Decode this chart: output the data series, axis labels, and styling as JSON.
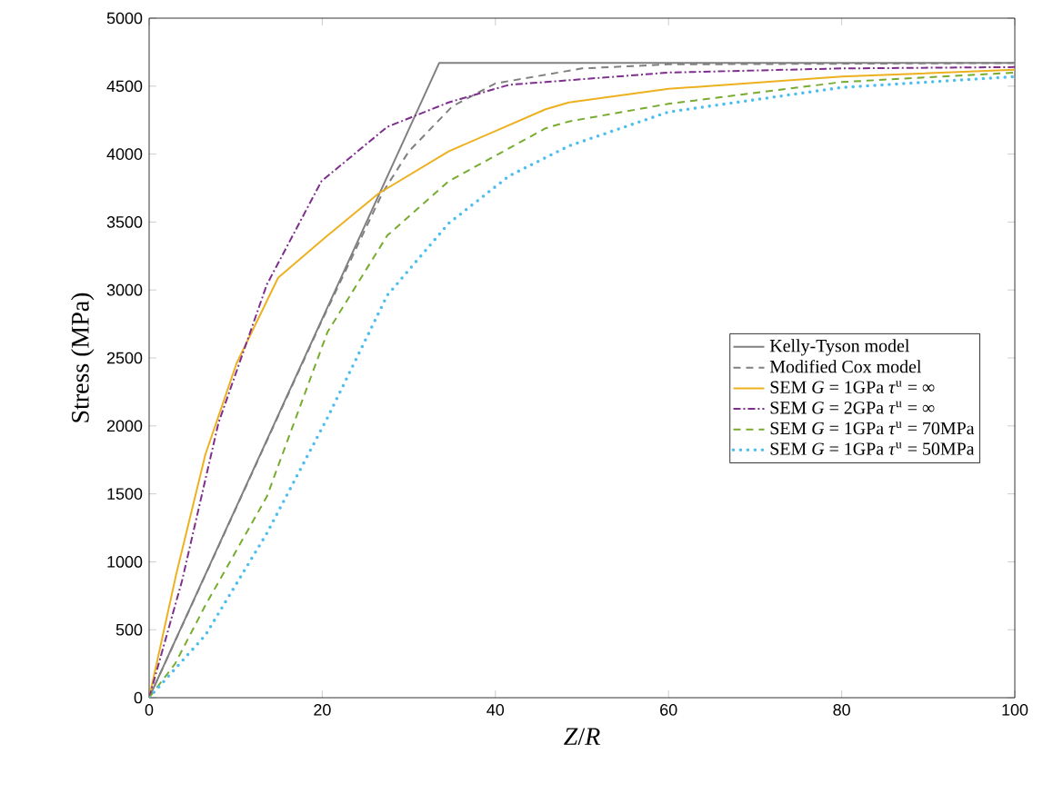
{
  "chart_data": {
    "type": "line",
    "xlabel": "*Z*/*R*",
    "ylabel": "Stress (MPa)",
    "xlim": [
      0,
      100
    ],
    "ylim": [
      0,
      5000
    ],
    "xticks": [
      0,
      20,
      40,
      60,
      80,
      100
    ],
    "yticks": [
      0,
      500,
      1000,
      1500,
      2000,
      2500,
      3000,
      3500,
      4000,
      4500,
      5000
    ],
    "grid": false,
    "legend": "right",
    "series": [
      {
        "name": "Kelly-Tyson model",
        "color": "#808080",
        "line_style": "solid",
        "x": [
          0,
          33.5,
          100
        ],
        "values": [
          0,
          4670,
          4670
        ]
      },
      {
        "name": "Modified Cox model",
        "color": "#808080",
        "line_style": "dashed",
        "x": [
          0,
          10,
          20,
          27,
          30,
          35,
          40,
          50,
          60,
          100
        ],
        "values": [
          0,
          1390,
          2780,
          3720,
          4020,
          4350,
          4520,
          4630,
          4660,
          4670
        ]
      },
      {
        "name": "SEM *G* = 1GPa *τ*$^{u}$ = ∞",
        "color": "#edb120",
        "line_style": "solid",
        "x": [
          0,
          3.1,
          6.5,
          10.1,
          14.9,
          20.6,
          26.5,
          34.6,
          45.8,
          48.5,
          60,
          80,
          100
        ],
        "values": [
          0,
          900,
          1790,
          2460,
          3090,
          3400,
          3710,
          4020,
          4330,
          4380,
          4480,
          4570,
          4620
        ]
      },
      {
        "name": "SEM *G* = 2GPa *τ*$^{u}$ = ∞",
        "color": "#7e2f8e",
        "line_style": "dashdotted",
        "x": [
          0,
          3.8,
          8,
          13.6,
          19.9,
          27.5,
          34.6,
          41.6,
          45.8,
          60,
          80,
          100
        ],
        "values": [
          0,
          860,
          2020,
          3040,
          3800,
          4200,
          4380,
          4510,
          4530,
          4600,
          4630,
          4640
        ]
      },
      {
        "name": "SEM *G* = 1GPa *τ*$^{u}$ = 70MPa",
        "color": "#77ac30",
        "line_style": "dashed",
        "x": [
          0,
          3,
          6.5,
          13.6,
          20.6,
          27.5,
          34.6,
          45.8,
          48.5,
          60,
          80,
          100
        ],
        "values": [
          0,
          250,
          680,
          1480,
          2690,
          3400,
          3800,
          4190,
          4240,
          4370,
          4530,
          4600
        ]
      },
      {
        "name": "SEM *G* = 1GPa *τ*$^{u}$ = 50MPa",
        "color": "#4dbeee",
        "line_style": "dotted",
        "x": [
          0,
          6.5,
          13.6,
          20.6,
          27.5,
          34.6,
          41.6,
          48.5,
          60,
          80,
          100
        ],
        "values": [
          0,
          460,
          1210,
          2060,
          2960,
          3490,
          3840,
          4060,
          4310,
          4490,
          4570
        ]
      }
    ]
  }
}
